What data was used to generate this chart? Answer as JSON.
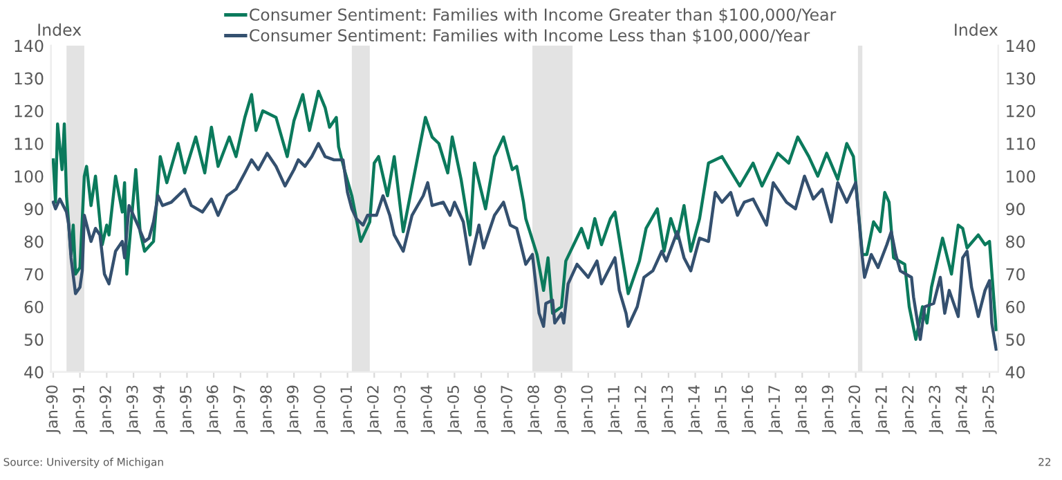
{
  "chart_data": {
    "type": "line",
    "ylabel": "Index",
    "y2label": "Index",
    "legend": "top",
    "line_style": "solid",
    "series": [
      {
        "name": "Consumer Sentiment: Families with Income Greater than $100,000/Year",
        "color": "#0b7a5c",
        "x": [
          "1990-01",
          "1990-02",
          "1990-03",
          "1990-05",
          "1990-06",
          "1990-07",
          "1990-09",
          "1990-10",
          "1990-11",
          "1991-01",
          "1991-03",
          "1991-04",
          "1991-06",
          "1991-08",
          "1991-11",
          "1992-01",
          "1992-02",
          "1992-05",
          "1992-08",
          "1992-09",
          "1992-10",
          "1993-02",
          "1993-04",
          "1993-06",
          "1993-10",
          "1994-01",
          "1994-04",
          "1994-09",
          "1994-12",
          "1995-05",
          "1995-09",
          "1995-12",
          "1996-03",
          "1996-08",
          "1996-11",
          "1997-03",
          "1997-06",
          "1997-08",
          "1997-11",
          "1998-05",
          "1998-10",
          "1999-01",
          "1999-05",
          "1999-08",
          "1999-12",
          "2000-03",
          "2000-05",
          "2000-08",
          "2000-09",
          "2000-12",
          "2001-03",
          "2001-07",
          "2001-11",
          "2002-01",
          "2002-03",
          "2002-07",
          "2002-10",
          "2003-02",
          "2003-08",
          "2003-12",
          "2004-03",
          "2004-06",
          "2004-10",
          "2004-12",
          "2005-04",
          "2005-08",
          "2005-10",
          "2006-03",
          "2006-07",
          "2006-11",
          "2007-03",
          "2007-05",
          "2007-08",
          "2007-09",
          "2008-02",
          "2008-05",
          "2008-07",
          "2008-09",
          "2009-01",
          "2009-03",
          "2009-10",
          "2010-01",
          "2010-04",
          "2010-07",
          "2010-11",
          "2011-01",
          "2011-07",
          "2011-12",
          "2012-03",
          "2012-08",
          "2012-11",
          "2013-02",
          "2013-05",
          "2013-08",
          "2013-11",
          "2014-03",
          "2014-07",
          "2015-01",
          "2015-09",
          "2016-03",
          "2016-07",
          "2017-02",
          "2017-07",
          "2017-11",
          "2018-04",
          "2018-08",
          "2018-12",
          "2019-05",
          "2019-09",
          "2019-12",
          "2020-04",
          "2020-06",
          "2020-09",
          "2020-12",
          "2021-02",
          "2021-04",
          "2021-06",
          "2021-11",
          "2022-01",
          "2022-04",
          "2022-07",
          "2022-09",
          "2022-11",
          "2023-04",
          "2023-08",
          "2023-11",
          "2024-01",
          "2024-03",
          "2024-08",
          "2024-11",
          "2025-01",
          "2025-04"
        ],
        "values": [
          105,
          92,
          116,
          102,
          116,
          94,
          76,
          85,
          70,
          72,
          100,
          103,
          91,
          100,
          79,
          85,
          82,
          100,
          89,
          98,
          70,
          102,
          83,
          77,
          80,
          106,
          98,
          110,
          101,
          112,
          101,
          115,
          103,
          112,
          106,
          118,
          125,
          114,
          120,
          118,
          106,
          117,
          125,
          114,
          126,
          121,
          115,
          118,
          109,
          101,
          94,
          80,
          86,
          104,
          106,
          94,
          106,
          83,
          104,
          118,
          112,
          110,
          101,
          112,
          99,
          82,
          104,
          90,
          106,
          112,
          102,
          103,
          92,
          87,
          76,
          65,
          75,
          58,
          60,
          74,
          84,
          78,
          87,
          79,
          87,
          89,
          64,
          74,
          84,
          90,
          77,
          87,
          81,
          91,
          77,
          87,
          104,
          106,
          97,
          104,
          97,
          107,
          104,
          112,
          106,
          100,
          107,
          99,
          110,
          106,
          76,
          76,
          86,
          83,
          95,
          92,
          75,
          73,
          60,
          50,
          60,
          55,
          66,
          81,
          70,
          85,
          84,
          78,
          82,
          79,
          80,
          53
        ]
      },
      {
        "name": "Consumer Sentiment: Families with Income Less than $100,000/Year",
        "color": "#34506f",
        "x": [
          "1990-01",
          "1990-02",
          "1990-04",
          "1990-07",
          "1990-08",
          "1990-09",
          "1990-11",
          "1991-01",
          "1991-02",
          "1991-03",
          "1991-06",
          "1991-08",
          "1991-10",
          "1991-12",
          "1992-02",
          "1992-05",
          "1992-08",
          "1992-09",
          "1992-11",
          "1993-03",
          "1993-06",
          "1993-08",
          "1993-10",
          "1993-12",
          "1994-02",
          "1994-06",
          "1994-12",
          "1995-03",
          "1995-08",
          "1995-12",
          "1996-03",
          "1996-07",
          "1996-11",
          "1997-03",
          "1997-06",
          "1997-09",
          "1998-01",
          "1998-05",
          "1998-09",
          "1999-01",
          "1999-03",
          "1999-06",
          "1999-09",
          "1999-12",
          "2000-03",
          "2000-07",
          "2000-11",
          "2001-01",
          "2001-03",
          "2001-05",
          "2001-08",
          "2001-10",
          "2002-02",
          "2002-05",
          "2002-08",
          "2002-10",
          "2003-02",
          "2003-06",
          "2003-11",
          "2004-01",
          "2004-03",
          "2004-08",
          "2004-11",
          "2005-01",
          "2005-05",
          "2005-08",
          "2005-12",
          "2006-02",
          "2006-07",
          "2006-11",
          "2007-02",
          "2007-05",
          "2007-09",
          "2007-12",
          "2008-03",
          "2008-05",
          "2008-06",
          "2008-09",
          "2008-10",
          "2009-01",
          "2009-02",
          "2009-04",
          "2009-08",
          "2010-01",
          "2010-05",
          "2010-07",
          "2010-10",
          "2011-01",
          "2011-03",
          "2011-06",
          "2011-07",
          "2011-11",
          "2012-02",
          "2012-06",
          "2012-10",
          "2012-12",
          "2013-05",
          "2013-08",
          "2013-11",
          "2014-03",
          "2014-07",
          "2014-10",
          "2015-01",
          "2015-05",
          "2015-08",
          "2015-11",
          "2016-03",
          "2016-09",
          "2016-12",
          "2017-06",
          "2017-10",
          "2018-02",
          "2018-06",
          "2018-10",
          "2019-02",
          "2019-05",
          "2019-09",
          "2020-01",
          "2020-04",
          "2020-05",
          "2020-08",
          "2020-11",
          "2021-03",
          "2021-05",
          "2021-07",
          "2021-09",
          "2022-02",
          "2022-03",
          "2022-06",
          "2022-08",
          "2022-12",
          "2023-03",
          "2023-05",
          "2023-07",
          "2023-11",
          "2024-01",
          "2024-03",
          "2024-05",
          "2024-08",
          "2024-11",
          "2025-01",
          "2025-02",
          "2025-04"
        ],
        "values": [
          92,
          90,
          93,
          89,
          85,
          75,
          64,
          66,
          71,
          88,
          80,
          84,
          82,
          70,
          67,
          77,
          80,
          75,
          91,
          85,
          80,
          81,
          86,
          94,
          91,
          92,
          96,
          91,
          89,
          93,
          88,
          94,
          96,
          101,
          105,
          102,
          107,
          103,
          97,
          102,
          105,
          103,
          106,
          110,
          106,
          105,
          105,
          95,
          90,
          87,
          85,
          88,
          88,
          94,
          88,
          82,
          77,
          88,
          94,
          98,
          91,
          92,
          88,
          92,
          86,
          73,
          85,
          78,
          88,
          92,
          85,
          84,
          73,
          76,
          58,
          54,
          61,
          62,
          55,
          58,
          55,
          67,
          73,
          69,
          74,
          67,
          71,
          75,
          65,
          58,
          54,
          60,
          69,
          71,
          77,
          74,
          83,
          75,
          71,
          81,
          80,
          95,
          92,
          95,
          88,
          92,
          93,
          85,
          98,
          92,
          90,
          100,
          93,
          96,
          86,
          98,
          92,
          98,
          75,
          69,
          76,
          72,
          79,
          83,
          76,
          71,
          69,
          63,
          50,
          60,
          61,
          69,
          58,
          65,
          57,
          75,
          77,
          66,
          57,
          65,
          68,
          55,
          47
        ]
      }
    ],
    "bands": [
      {
        "axis": "x",
        "from": "1990-07",
        "to": "1991-03",
        "color": "#e3e3e3"
      },
      {
        "axis": "x",
        "from": "2001-03",
        "to": "2001-11",
        "color": "#e3e3e3"
      },
      {
        "axis": "x",
        "from": "2007-12",
        "to": "2009-06",
        "color": "#e3e3e3"
      },
      {
        "axis": "x",
        "from": "2020-02",
        "to": "2020-04",
        "color": "#e3e3e3"
      }
    ],
    "xlim": [
      "1989-12",
      "2025-05"
    ],
    "xticks": [
      {
        "value": "1990-01",
        "label": "Jan-90"
      },
      {
        "value": "1991-01",
        "label": "Jan-91"
      },
      {
        "value": "1992-01",
        "label": "Jan-92"
      },
      {
        "value": "1993-01",
        "label": "Jan-93"
      },
      {
        "value": "1994-01",
        "label": "Jan-94"
      },
      {
        "value": "1995-01",
        "label": "Jan-95"
      },
      {
        "value": "1996-01",
        "label": "Jan-96"
      },
      {
        "value": "1997-01",
        "label": "Jan-97"
      },
      {
        "value": "1998-01",
        "label": "Jan-98"
      },
      {
        "value": "1999-01",
        "label": "Jan-99"
      },
      {
        "value": "2000-01",
        "label": "Jan-00"
      },
      {
        "value": "2001-01",
        "label": "Jan-01"
      },
      {
        "value": "2002-01",
        "label": "Jan-02"
      },
      {
        "value": "2003-01",
        "label": "Jan-03"
      },
      {
        "value": "2004-01",
        "label": "Jan-04"
      },
      {
        "value": "2005-01",
        "label": "Jan-05"
      },
      {
        "value": "2006-01",
        "label": "Jan-06"
      },
      {
        "value": "2007-01",
        "label": "Jan-07"
      },
      {
        "value": "2008-01",
        "label": "Jan-08"
      },
      {
        "value": "2009-01",
        "label": "Jan-09"
      },
      {
        "value": "2010-01",
        "label": "Jan-10"
      },
      {
        "value": "2011-01",
        "label": "Jan-11"
      },
      {
        "value": "2012-01",
        "label": "Jan-12"
      },
      {
        "value": "2013-01",
        "label": "Jan-13"
      },
      {
        "value": "2014-01",
        "label": "Jan-14"
      },
      {
        "value": "2015-01",
        "label": "Jan-15"
      },
      {
        "value": "2016-01",
        "label": "Jan-16"
      },
      {
        "value": "2017-01",
        "label": "Jan-17"
      },
      {
        "value": "2018-01",
        "label": "Jan-18"
      },
      {
        "value": "2019-01",
        "label": "Jan-19"
      },
      {
        "value": "2020-01",
        "label": "Jan-20"
      },
      {
        "value": "2021-01",
        "label": "Jan-21"
      },
      {
        "value": "2022-01",
        "label": "Jan-22"
      },
      {
        "value": "2023-01",
        "label": "Jan-23"
      },
      {
        "value": "2024-01",
        "label": "Jan-24"
      },
      {
        "value": "2025-01",
        "label": "Jan-25"
      }
    ],
    "ylim": [
      40,
      140
    ],
    "yticks": [
      40,
      50,
      60,
      70,
      80,
      90,
      100,
      110,
      120,
      130,
      140
    ],
    "y2lim": [
      40,
      140
    ],
    "y2ticks": [
      40,
      50,
      60,
      70,
      80,
      90,
      100,
      110,
      120,
      130,
      140
    ],
    "annotations": [
      "Source: University of Michigan",
      "22"
    ]
  }
}
